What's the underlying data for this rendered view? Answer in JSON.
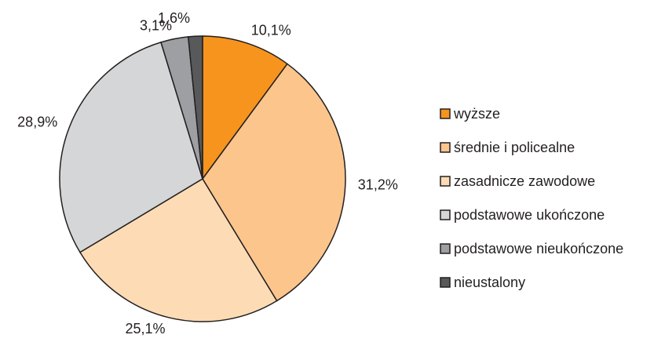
{
  "chart_data": {
    "type": "pie",
    "categories": [
      "wyższe",
      "średnie i policealne",
      "zasadnicze zawodowe",
      "podstawowe ukończone",
      "podstawowe nieukończone",
      "nieustalony"
    ],
    "values": [
      10.1,
      31.2,
      25.1,
      28.9,
      3.1,
      1.6
    ],
    "value_labels": [
      "10,1%",
      "31,2%",
      "25,1%",
      "28,9%",
      "3,1%",
      "1,6%"
    ],
    "colors": [
      "#f7941d",
      "#fbc58c",
      "#fddcb5",
      "#d5d6d8",
      "#9d9fa2",
      "#58595b"
    ],
    "legend": "right"
  }
}
